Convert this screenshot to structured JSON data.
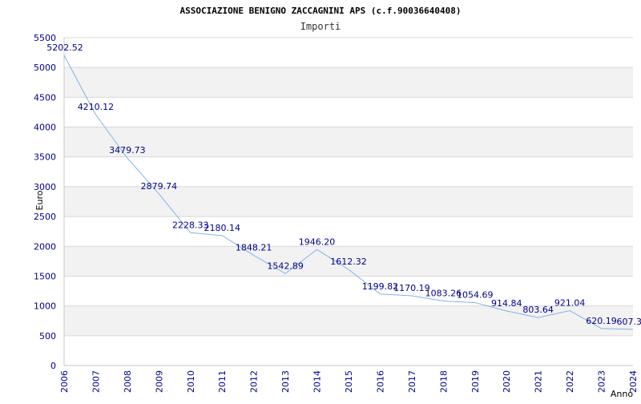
{
  "chart_data": {
    "type": "line",
    "title": "ASSOCIAZIONE BENIGNO ZACCAGNINI APS (c.f.90036640408)",
    "subtitle": "Importi",
    "xlabel": "Anno",
    "ylabel": "Euro",
    "ylim": [
      0,
      5500
    ],
    "yticks": [
      0,
      500,
      1000,
      1500,
      2000,
      2500,
      3000,
      3500,
      4000,
      4500,
      5000,
      5500
    ],
    "x": [
      2006,
      2007,
      2008,
      2009,
      2010,
      2011,
      2012,
      2013,
      2014,
      2015,
      2016,
      2017,
      2018,
      2019,
      2020,
      2021,
      2022,
      2023,
      2024
    ],
    "values": [
      5202.52,
      4210.12,
      3479.73,
      2879.74,
      2228.33,
      2180.14,
      1848.21,
      1542.89,
      1946.2,
      1612.32,
      1199.82,
      1170.19,
      1083.26,
      1054.69,
      914.84,
      803.64,
      921.04,
      620.19,
      607.3
    ],
    "value_labels": [
      "5202.52",
      "4210.12",
      "3479.73",
      "2879.74",
      "2228.33",
      "2180.14",
      "1848.21",
      "1542.89",
      "1946.20",
      "1612.32",
      "1199.82",
      "1170.19",
      "1083.26",
      "1054.69",
      "914.84",
      "803.64",
      "921.04",
      "620.19",
      "607.3"
    ],
    "grid": true,
    "colors": {
      "line": "#7fb2ea",
      "tick_text": "#00008b",
      "band": "#f2f2f2",
      "grid": "#d8d8d8",
      "title": "#000000"
    }
  }
}
